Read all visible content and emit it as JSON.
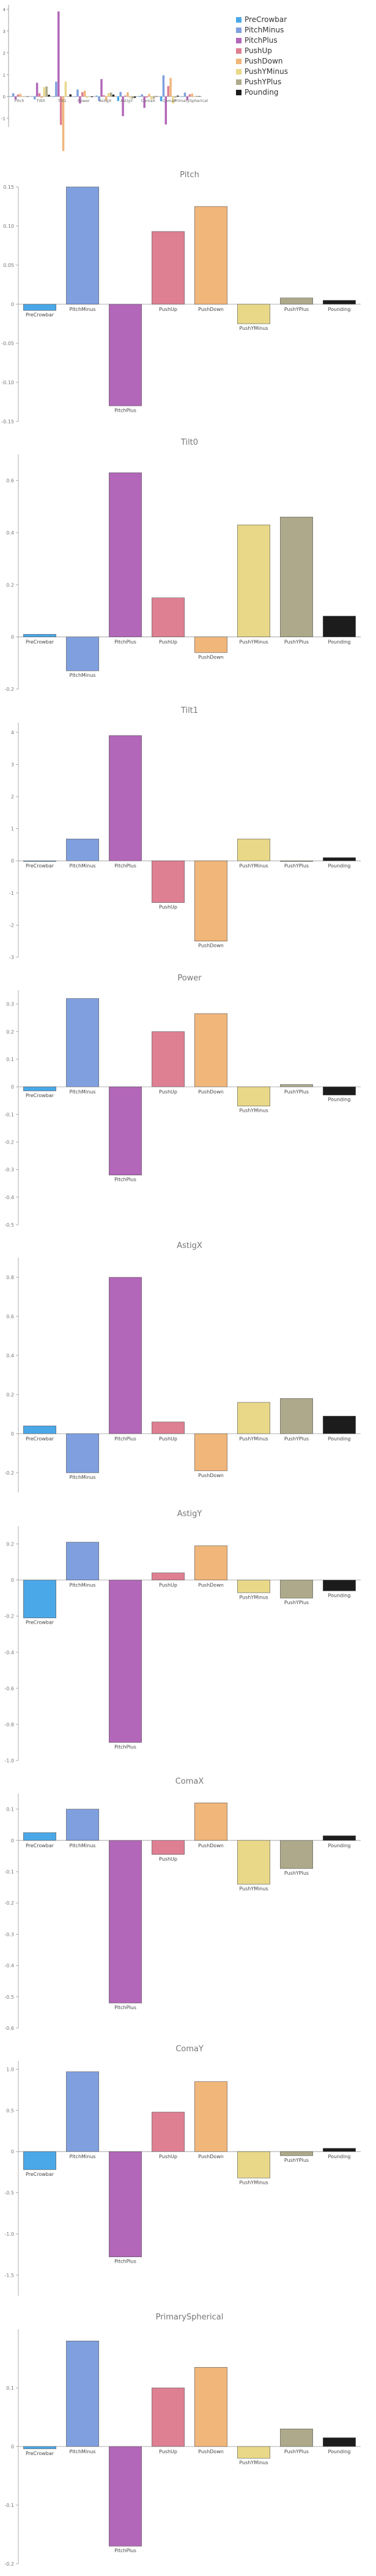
{
  "legend": {
    "placement": "top-right",
    "items": [
      {
        "name": "PreCrowbar",
        "color": "#4aa8e8"
      },
      {
        "name": "PitchMinus",
        "color": "#7f9fdf"
      },
      {
        "name": "PitchPlus",
        "color": "#b267b8"
      },
      {
        "name": "PushUp",
        "color": "#de7f92"
      },
      {
        "name": "PushDown",
        "color": "#f1b67a"
      },
      {
        "name": "PushYMinus",
        "color": "#e8d888"
      },
      {
        "name": "PushYPlus",
        "color": "#ada98a"
      },
      {
        "name": "Pounding",
        "color": "#1c1c1c"
      }
    ]
  },
  "chart_data": [
    {
      "type": "bar",
      "title": "",
      "overview": true,
      "categories": [
        "Pitch",
        "Tilt0",
        "Tilt1",
        "Power",
        "AstigX",
        "AstigY",
        "ComaX",
        "ComaY",
        "PrimarySpherical"
      ],
      "tick_labels": [
        "Pitch",
        "Tilt0",
        "Tilt1",
        "Power",
        "AstigX",
        "AstigY",
        "ComaX",
        "ComaY",
        "PrimarySpherical"
      ],
      "series_names": [
        "PreCrowbar",
        "PitchMinus",
        "PitchPlus",
        "PushUp",
        "PushDown",
        "PushYMinus",
        "PushYPlus",
        "Pounding"
      ],
      "yticks": [
        -1,
        0,
        1,
        2,
        3,
        4
      ],
      "ylim": [
        -1.4,
        4.2
      ],
      "grid": false
    },
    {
      "type": "bar",
      "title": "Pitch",
      "categories": [
        "PreCrowbar",
        "PitchMinus",
        "PitchPlus",
        "PushUp",
        "PushDown",
        "PushYMinus",
        "PushYPlus",
        "Pounding"
      ],
      "values": [
        -0.008,
        0.15,
        -0.13,
        0.093,
        0.125,
        -0.025,
        0.008,
        0.005
      ],
      "ylim": [
        -0.15,
        0.15
      ],
      "yticks": [
        -0.15,
        -0.1,
        -0.05,
        0,
        0.05,
        0.1,
        0.15
      ],
      "ytick_labels": [
        "-0.15",
        "-0.10",
        "-0.05",
        "0",
        "0.05",
        "0.10",
        "0.15"
      ],
      "grid": false
    },
    {
      "type": "bar",
      "title": "Tilt0",
      "categories": [
        "PreCrowbar",
        "PitchMinus",
        "PitchPlus",
        "PushUp",
        "PushDown",
        "PushYMinus",
        "PushYPlus",
        "Pounding"
      ],
      "values": [
        0.01,
        -0.13,
        0.63,
        0.15,
        -0.06,
        0.43,
        0.46,
        0.08
      ],
      "ylim": [
        -0.2,
        0.7
      ],
      "yticks": [
        -0.2,
        0,
        0.2,
        0.4,
        0.6
      ],
      "ytick_labels": [
        "-0.2",
        "0",
        "0.2",
        "0.4",
        "0.6"
      ],
      "grid": false
    },
    {
      "type": "bar",
      "title": "Tilt1",
      "categories": [
        "PreCrowbar",
        "PitchMinus",
        "PitchPlus",
        "PushUp",
        "PushDown",
        "PushYMinus",
        "PushYPlus",
        "Pounding"
      ],
      "values": [
        -0.02,
        0.68,
        3.9,
        -1.3,
        -2.5,
        0.68,
        -0.02,
        0.1
      ],
      "ylim": [
        -3.0,
        4.3
      ],
      "yticks": [
        -3,
        -2,
        -1,
        0,
        1,
        2,
        3,
        4
      ],
      "ytick_labels": [
        "-3",
        "-2",
        "-1",
        "0",
        "1",
        "2",
        "3",
        "4"
      ],
      "grid": false
    },
    {
      "type": "bar",
      "title": "Power",
      "categories": [
        "PreCrowbar",
        "PitchMinus",
        "PitchPlus",
        "PushUp",
        "PushDown",
        "PushYMinus",
        "PushYPlus",
        "Pounding"
      ],
      "values": [
        -0.015,
        0.32,
        -0.32,
        0.2,
        0.265,
        -0.07,
        0.008,
        -0.03
      ],
      "ylim": [
        -0.5,
        0.35
      ],
      "yticks": [
        -0.5,
        -0.4,
        -0.3,
        -0.2,
        -0.1,
        0,
        0.1,
        0.2,
        0.3
      ],
      "ytick_labels": [
        "-0.5",
        "-0.4",
        "-0.3",
        "-0.2",
        "-0.1",
        "0",
        "0.1",
        "0.2",
        "0.3"
      ],
      "grid": false
    },
    {
      "type": "bar",
      "title": "AstigX",
      "categories": [
        "PreCrowbar",
        "PitchMinus",
        "PitchPlus",
        "PushUp",
        "PushDown",
        "PushYMinus",
        "PushYPlus",
        "Pounding"
      ],
      "values": [
        0.04,
        -0.2,
        0.8,
        0.06,
        -0.19,
        0.16,
        0.18,
        0.09
      ],
      "ylim": [
        -0.3,
        0.9
      ],
      "yticks": [
        -0.2,
        0,
        0.2,
        0.4,
        0.6,
        0.8
      ],
      "ytick_labels": [
        "-0.2",
        "0",
        "0.2",
        "0.4",
        "0.6",
        "0.8"
      ],
      "grid": false
    },
    {
      "type": "bar",
      "title": "AstigY",
      "categories": [
        "PreCrowbar",
        "PitchMinus",
        "PitchPlus",
        "PushUp",
        "PushDown",
        "PushYMinus",
        "PushYPlus",
        "Pounding"
      ],
      "values": [
        -0.21,
        0.21,
        -0.9,
        0.04,
        0.19,
        -0.07,
        -0.1,
        -0.06
      ],
      "ylim": [
        -1.0,
        0.3
      ],
      "yticks": [
        -1.0,
        -0.8,
        -0.6,
        -0.4,
        -0.2,
        0,
        0.2
      ],
      "ytick_labels": [
        "-1.0",
        "-0.8",
        "-0.6",
        "-0.4",
        "-0.2",
        "0",
        "0.2"
      ],
      "grid": false
    },
    {
      "type": "bar",
      "title": "ComaX",
      "categories": [
        "PreCrowbar",
        "PitchMinus",
        "PitchPlus",
        "PushUp",
        "PushDown",
        "PushYMinus",
        "PushYPlus",
        "Pounding"
      ],
      "values": [
        0.025,
        0.1,
        -0.52,
        -0.045,
        0.12,
        -0.14,
        -0.09,
        0.015
      ],
      "ylim": [
        -0.6,
        0.15
      ],
      "yticks": [
        -0.6,
        -0.5,
        -0.4,
        -0.3,
        -0.2,
        -0.1,
        0,
        0.1
      ],
      "ytick_labels": [
        "-0.6",
        "-0.5",
        "-0.4",
        "-0.3",
        "-0.2",
        "-0.1",
        "0",
        "0.1"
      ],
      "grid": false
    },
    {
      "type": "bar",
      "title": "ComaY",
      "categories": [
        "PreCrowbar",
        "PitchMinus",
        "PitchPlus",
        "PushUp",
        "PushDown",
        "PushYMinus",
        "PushYPlus",
        "Pounding"
      ],
      "values": [
        -0.22,
        0.97,
        -1.28,
        0.48,
        0.85,
        -0.32,
        -0.05,
        0.04
      ],
      "ylim": [
        -1.75,
        1.1
      ],
      "yticks": [
        -1.5,
        -1.0,
        -0.5,
        0,
        0.5,
        1.0
      ],
      "ytick_labels": [
        "-1.5",
        "-1.0",
        "-0.5",
        "0",
        "0.5",
        "1.0"
      ],
      "grid": false
    },
    {
      "type": "bar",
      "title": "PrimarySpherical",
      "categories": [
        "PreCrowbar",
        "PitchMinus",
        "PitchPlus",
        "PushUp",
        "PushDown",
        "PushYMinus",
        "PushYPlus",
        "Pounding"
      ],
      "values": [
        -0.004,
        0.18,
        -0.17,
        0.1,
        0.135,
        -0.02,
        0.03,
        0.015
      ],
      "ylim": [
        -0.2,
        0.2
      ],
      "yticks": [
        -0.2,
        -0.1,
        0,
        0.1
      ],
      "ytick_labels": [
        "-0.2",
        "-0.1",
        "0",
        "0.1"
      ],
      "grid": false
    }
  ],
  "overview_values": [
    [
      -0.008,
      0.15,
      -0.13,
      0.093,
      0.125,
      -0.025,
      0.008,
      0.005
    ],
    [
      0.01,
      -0.13,
      0.63,
      0.15,
      -0.06,
      0.43,
      0.46,
      0.08
    ],
    [
      -0.02,
      0.68,
      3.9,
      -1.3,
      -2.5,
      0.68,
      -0.02,
      0.1
    ],
    [
      -0.015,
      0.32,
      -0.32,
      0.2,
      0.265,
      -0.07,
      0.008,
      -0.03
    ],
    [
      0.04,
      -0.2,
      0.8,
      0.06,
      -0.19,
      0.16,
      0.18,
      0.09
    ],
    [
      -0.21,
      0.21,
      -0.9,
      0.04,
      0.19,
      -0.07,
      -0.1,
      -0.06
    ],
    [
      0.025,
      0.1,
      -0.52,
      -0.045,
      0.12,
      -0.14,
      -0.09,
      0.015
    ],
    [
      -0.22,
      0.97,
      -1.28,
      0.48,
      0.85,
      -0.32,
      -0.05,
      0.04
    ],
    [
      -0.004,
      0.18,
      -0.17,
      0.1,
      0.135,
      -0.02,
      0.03,
      0.015
    ]
  ]
}
